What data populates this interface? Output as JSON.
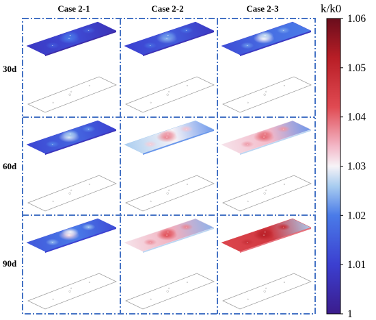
{
  "columns": [
    "Case 2-1",
    "Case 2-2",
    "Case 2-3"
  ],
  "rows": [
    "30d",
    "60d",
    "90d"
  ],
  "colorbar": {
    "title": "k/k0",
    "min": 1,
    "max": 1.06,
    "ticks": [
      "1.06",
      "1.05",
      "1.04",
      "1.03",
      "1.02",
      "1.01",
      "1"
    ],
    "tick_values": [
      1.06,
      1.05,
      1.04,
      1.03,
      1.02,
      1.01,
      1.0
    ],
    "stops": [
      {
        "v": 1.0,
        "color": "#3b1c8c"
      },
      {
        "v": 1.01,
        "color": "#3b3fd0"
      },
      {
        "v": 1.02,
        "color": "#4a7be8"
      },
      {
        "v": 1.026,
        "color": "#a9cdf0"
      },
      {
        "v": 1.03,
        "color": "#f7f3f7"
      },
      {
        "v": 1.034,
        "color": "#f3b8c8"
      },
      {
        "v": 1.042,
        "color": "#e04a52"
      },
      {
        "v": 1.052,
        "color": "#b81e26"
      },
      {
        "v": 1.06,
        "color": "#6a0d1c"
      }
    ]
  },
  "panels": [
    [
      {
        "base": 1.008,
        "edge_right": 1.006,
        "spot_peak": 1.02
      },
      {
        "base": 1.01,
        "edge_right": 1.008,
        "spot_peak": 1.024
      },
      {
        "base": 1.012,
        "edge_right": 1.02,
        "spot_peak": 1.03
      }
    ],
    [
      {
        "base": 1.011,
        "edge_right": 1.01,
        "spot_peak": 1.028
      },
      {
        "base": 1.026,
        "edge_right": 1.022,
        "spot_peak": 1.038
      },
      {
        "base": 1.031,
        "edge_right": 1.022,
        "spot_peak": 1.04
      }
    ],
    [
      {
        "base": 1.014,
        "edge_right": 1.012,
        "spot_peak": 1.032
      },
      {
        "base": 1.031,
        "edge_right": 1.024,
        "spot_peak": 1.042
      },
      {
        "base": 1.043,
        "edge_right": 1.026,
        "spot_peak": 1.052
      }
    ]
  ]
}
